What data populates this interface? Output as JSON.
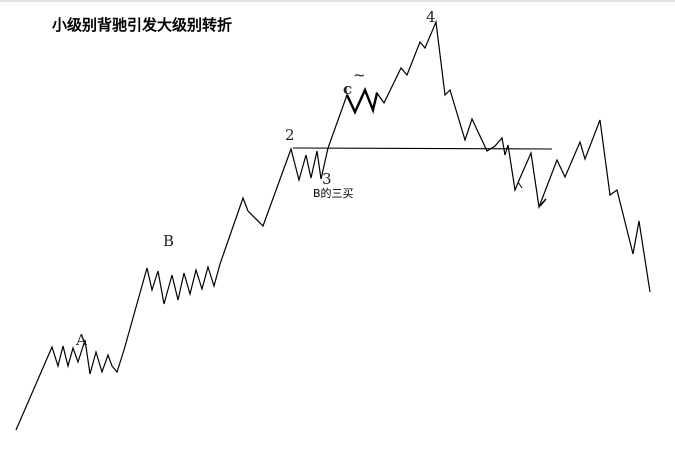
{
  "title": "小级别背驰引发大级别转折",
  "labels": {
    "a": "A",
    "b": "B",
    "two": "2",
    "three": "3",
    "four": "4",
    "c": "c",
    "tilde": "~",
    "b_third_buy": "B的三买"
  },
  "colors": {
    "line": "#000000",
    "background": "#ffffff"
  }
}
